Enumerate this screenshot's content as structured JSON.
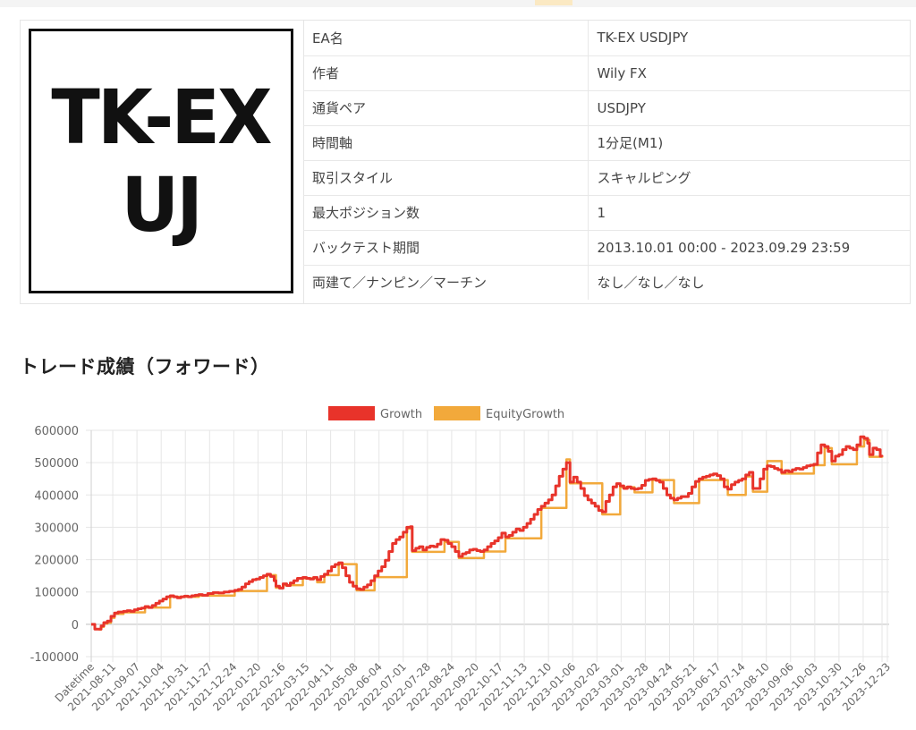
{
  "info": {
    "logo_lines": [
      "TK-EX",
      "UJ"
    ],
    "rows": [
      {
        "label": "EA名",
        "value": "TK-EX USDJPY"
      },
      {
        "label": "作者",
        "value": "Wily FX"
      },
      {
        "label": "通貨ペア",
        "value": "USDJPY"
      },
      {
        "label": "時間軸",
        "value": "1分足(M1)"
      },
      {
        "label": "取引スタイル",
        "value": "スキャルピング"
      },
      {
        "label": "最大ポジション数",
        "value": "1"
      },
      {
        "label": "バックテスト期間",
        "value": "2013.10.01 00:00 - 2023.09.29 23:59"
      },
      {
        "label": "両建て／ナンピン／マーチン",
        "value": "なし／なし／なし"
      }
    ]
  },
  "section_title": "トレード成績（フォワード）",
  "chart_data": {
    "type": "line",
    "title": "",
    "xlabel": "",
    "ylabel": "",
    "ylim": [
      -100000,
      600000
    ],
    "y_ticks": [
      600000,
      500000,
      400000,
      300000,
      200000,
      100000,
      0,
      -100000
    ],
    "grid": true,
    "legend_position": "top",
    "x_tick_labels": [
      "Datetime",
      "2021-08-11",
      "2021-09-07",
      "2021-10-04",
      "2021-10-31",
      "2021-11-27",
      "2021-12-24",
      "2022-01-20",
      "2022-02-16",
      "2022-03-15",
      "2022-04-11",
      "2022-05-08",
      "2022-06-04",
      "2022-07-01",
      "2022-07-28",
      "2022-08-24",
      "2022-09-20",
      "2022-10-17",
      "2022-11-13",
      "2022-12-10",
      "2023-01-06",
      "2023-02-02",
      "2023-03-01",
      "2023-03-28",
      "2023-04-24",
      "2023-05-21",
      "2023-06-17",
      "2023-07-14",
      "2023-08-10",
      "2023-09-06",
      "2023-10-03",
      "2023-10-30",
      "2023-11-26",
      "2023-12-23"
    ],
    "x_tick_offsets": [
      0,
      24,
      51,
      78,
      105,
      132,
      159,
      186,
      213,
      240,
      267,
      294,
      321,
      348,
      375,
      402,
      429,
      456,
      483,
      510,
      537,
      564,
      591,
      618,
      645,
      672,
      699,
      726,
      753,
      780,
      807,
      834,
      861,
      888
    ],
    "series": [
      {
        "name": "Growth",
        "color": "#e8332a",
        "points": [
          [
            0,
            0
          ],
          [
            3,
            0
          ],
          [
            4,
            -15000
          ],
          [
            9,
            -15000
          ],
          [
            11,
            -5000
          ],
          [
            14,
            5000
          ],
          [
            18,
            10000
          ],
          [
            22,
            25000
          ],
          [
            26,
            35000
          ],
          [
            30,
            38000
          ],
          [
            36,
            40000
          ],
          [
            40,
            42000
          ],
          [
            44,
            40000
          ],
          [
            48,
            45000
          ],
          [
            52,
            48000
          ],
          [
            56,
            50000
          ],
          [
            60,
            55000
          ],
          [
            64,
            52000
          ],
          [
            68,
            58000
          ],
          [
            72,
            65000
          ],
          [
            76,
            72000
          ],
          [
            80,
            78000
          ],
          [
            84,
            85000
          ],
          [
            88,
            88000
          ],
          [
            92,
            85000
          ],
          [
            96,
            82000
          ],
          [
            100,
            85000
          ],
          [
            104,
            87000
          ],
          [
            108,
            85000
          ],
          [
            112,
            88000
          ],
          [
            116,
            90000
          ],
          [
            120,
            92000
          ],
          [
            124,
            90000
          ],
          [
            130,
            95000
          ],
          [
            136,
            98000
          ],
          [
            142,
            97000
          ],
          [
            148,
            100000
          ],
          [
            154,
            102000
          ],
          [
            160,
            105000
          ],
          [
            164,
            108000
          ],
          [
            168,
            115000
          ],
          [
            172,
            125000
          ],
          [
            176,
            132000
          ],
          [
            180,
            138000
          ],
          [
            184,
            140000
          ],
          [
            188,
            145000
          ],
          [
            192,
            150000
          ],
          [
            196,
            155000
          ],
          [
            200,
            148000
          ],
          [
            204,
            135000
          ],
          [
            206,
            118000
          ],
          [
            210,
            112000
          ],
          [
            214,
            125000
          ],
          [
            218,
            120000
          ],
          [
            222,
            128000
          ],
          [
            226,
            135000
          ],
          [
            230,
            142000
          ],
          [
            236,
            145000
          ],
          [
            240,
            142000
          ],
          [
            244,
            140000
          ],
          [
            248,
            145000
          ],
          [
            252,
            138000
          ],
          [
            256,
            148000
          ],
          [
            260,
            155000
          ],
          [
            264,
            165000
          ],
          [
            268,
            178000
          ],
          [
            272,
            185000
          ],
          [
            276,
            190000
          ],
          [
            280,
            175000
          ],
          [
            284,
            150000
          ],
          [
            288,
            130000
          ],
          [
            292,
            118000
          ],
          [
            296,
            110000
          ],
          [
            300,
            108000
          ],
          [
            304,
            115000
          ],
          [
            308,
            122000
          ],
          [
            312,
            135000
          ],
          [
            316,
            150000
          ],
          [
            320,
            165000
          ],
          [
            324,
            178000
          ],
          [
            328,
            198000
          ],
          [
            332,
            225000
          ],
          [
            336,
            250000
          ],
          [
            340,
            262000
          ],
          [
            344,
            270000
          ],
          [
            348,
            285000
          ],
          [
            352,
            300000
          ],
          [
            356,
            302000
          ],
          [
            358,
            228000
          ],
          [
            362,
            235000
          ],
          [
            366,
            240000
          ],
          [
            370,
            230000
          ],
          [
            374,
            238000
          ],
          [
            378,
            242000
          ],
          [
            382,
            240000
          ],
          [
            386,
            248000
          ],
          [
            390,
            262000
          ],
          [
            394,
            260000
          ],
          [
            398,
            250000
          ],
          [
            402,
            240000
          ],
          [
            406,
            225000
          ],
          [
            410,
            210000
          ],
          [
            414,
            218000
          ],
          [
            418,
            222000
          ],
          [
            422,
            230000
          ],
          [
            426,
            232000
          ],
          [
            430,
            228000
          ],
          [
            434,
            225000
          ],
          [
            438,
            230000
          ],
          [
            442,
            240000
          ],
          [
            446,
            250000
          ],
          [
            450,
            258000
          ],
          [
            454,
            268000
          ],
          [
            458,
            282000
          ],
          [
            462,
            270000
          ],
          [
            466,
            275000
          ],
          [
            470,
            285000
          ],
          [
            474,
            295000
          ],
          [
            478,
            290000
          ],
          [
            482,
            300000
          ],
          [
            486,
            312000
          ],
          [
            490,
            325000
          ],
          [
            494,
            340000
          ],
          [
            498,
            355000
          ],
          [
            502,
            365000
          ],
          [
            506,
            375000
          ],
          [
            510,
            385000
          ],
          [
            514,
            400000
          ],
          [
            518,
            428000
          ],
          [
            522,
            458000
          ],
          [
            526,
            480000
          ],
          [
            530,
            500000
          ],
          [
            534,
            440000
          ],
          [
            538,
            455000
          ],
          [
            542,
            440000
          ],
          [
            546,
            420000
          ],
          [
            550,
            398000
          ],
          [
            554,
            385000
          ],
          [
            558,
            375000
          ],
          [
            562,
            365000
          ],
          [
            566,
            352000
          ],
          [
            570,
            348000
          ],
          [
            574,
            380000
          ],
          [
            578,
            400000
          ],
          [
            582,
            425000
          ],
          [
            586,
            435000
          ],
          [
            590,
            428000
          ],
          [
            594,
            420000
          ],
          [
            598,
            425000
          ],
          [
            602,
            420000
          ],
          [
            606,
            418000
          ],
          [
            610,
            420000
          ],
          [
            614,
            430000
          ],
          [
            618,
            445000
          ],
          [
            622,
            448000
          ],
          [
            626,
            450000
          ],
          [
            630,
            445000
          ],
          [
            634,
            440000
          ],
          [
            638,
            420000
          ],
          [
            642,
            400000
          ],
          [
            646,
            390000
          ],
          [
            650,
            385000
          ],
          [
            654,
            390000
          ],
          [
            658,
            395000
          ],
          [
            662,
            395000
          ],
          [
            666,
            405000
          ],
          [
            670,
            425000
          ],
          [
            674,
            442000
          ],
          [
            678,
            450000
          ],
          [
            682,
            455000
          ],
          [
            686,
            458000
          ],
          [
            690,
            462000
          ],
          [
            694,
            465000
          ],
          [
            698,
            460000
          ],
          [
            702,
            450000
          ],
          [
            706,
            425000
          ],
          [
            710,
            418000
          ],
          [
            714,
            432000
          ],
          [
            718,
            440000
          ],
          [
            722,
            445000
          ],
          [
            726,
            450000
          ],
          [
            730,
            462000
          ],
          [
            734,
            470000
          ],
          [
            738,
            420000
          ],
          [
            742,
            420000
          ],
          [
            746,
            450000
          ],
          [
            750,
            480000
          ],
          [
            754,
            490000
          ],
          [
            758,
            488000
          ],
          [
            762,
            482000
          ],
          [
            766,
            478000
          ],
          [
            770,
            470000
          ],
          [
            774,
            475000
          ],
          [
            778,
            472000
          ],
          [
            782,
            478000
          ],
          [
            786,
            482000
          ],
          [
            790,
            480000
          ],
          [
            794,
            485000
          ],
          [
            798,
            490000
          ],
          [
            802,
            492000
          ],
          [
            806,
            495000
          ],
          [
            810,
            530000
          ],
          [
            814,
            555000
          ],
          [
            818,
            550000
          ],
          [
            822,
            535000
          ],
          [
            826,
            505000
          ],
          [
            830,
            520000
          ],
          [
            834,
            525000
          ],
          [
            838,
            540000
          ],
          [
            842,
            550000
          ],
          [
            846,
            545000
          ],
          [
            850,
            540000
          ],
          [
            854,
            555000
          ],
          [
            858,
            580000
          ],
          [
            862,
            575000
          ],
          [
            866,
            560000
          ],
          [
            868,
            525000
          ],
          [
            872,
            545000
          ],
          [
            876,
            540000
          ],
          [
            880,
            520000
          ],
          [
            882,
            518000
          ]
        ]
      },
      {
        "name": "EquityGrowth",
        "color": "#f2a93b",
        "points": [
          [
            0,
            0
          ],
          [
            4,
            -15000
          ],
          [
            9,
            -16000
          ],
          [
            11,
            -8000
          ],
          [
            14,
            2000
          ],
          [
            18,
            5000
          ],
          [
            22,
            20000
          ],
          [
            26,
            32000
          ],
          [
            36,
            37000
          ],
          [
            60,
            52000
          ],
          [
            88,
            85000
          ],
          [
            120,
            89000
          ],
          [
            160,
            103000
          ],
          [
            196,
            152000
          ],
          [
            206,
            113000
          ],
          [
            214,
            121000
          ],
          [
            236,
            142000
          ],
          [
            252,
            130000
          ],
          [
            260,
            152000
          ],
          [
            276,
            186000
          ],
          [
            296,
            105000
          ],
          [
            316,
            146000
          ],
          [
            352,
            296000
          ],
          [
            358,
            224000
          ],
          [
            394,
            255000
          ],
          [
            410,
            205000
          ],
          [
            438,
            225000
          ],
          [
            462,
            266000
          ],
          [
            502,
            360000
          ],
          [
            530,
            510000
          ],
          [
            534,
            436000
          ],
          [
            570,
            340000
          ],
          [
            590,
            424000
          ],
          [
            606,
            408000
          ],
          [
            626,
            446000
          ],
          [
            650,
            375000
          ],
          [
            678,
            446000
          ],
          [
            702,
            446000
          ],
          [
            710,
            400000
          ],
          [
            730,
            457000
          ],
          [
            738,
            410000
          ],
          [
            754,
            505000
          ],
          [
            770,
            466000
          ],
          [
            806,
            492000
          ],
          [
            818,
            545000
          ],
          [
            826,
            495000
          ],
          [
            854,
            550000
          ],
          [
            862,
            570000
          ],
          [
            868,
            518000
          ],
          [
            882,
            515000
          ]
        ]
      }
    ]
  }
}
